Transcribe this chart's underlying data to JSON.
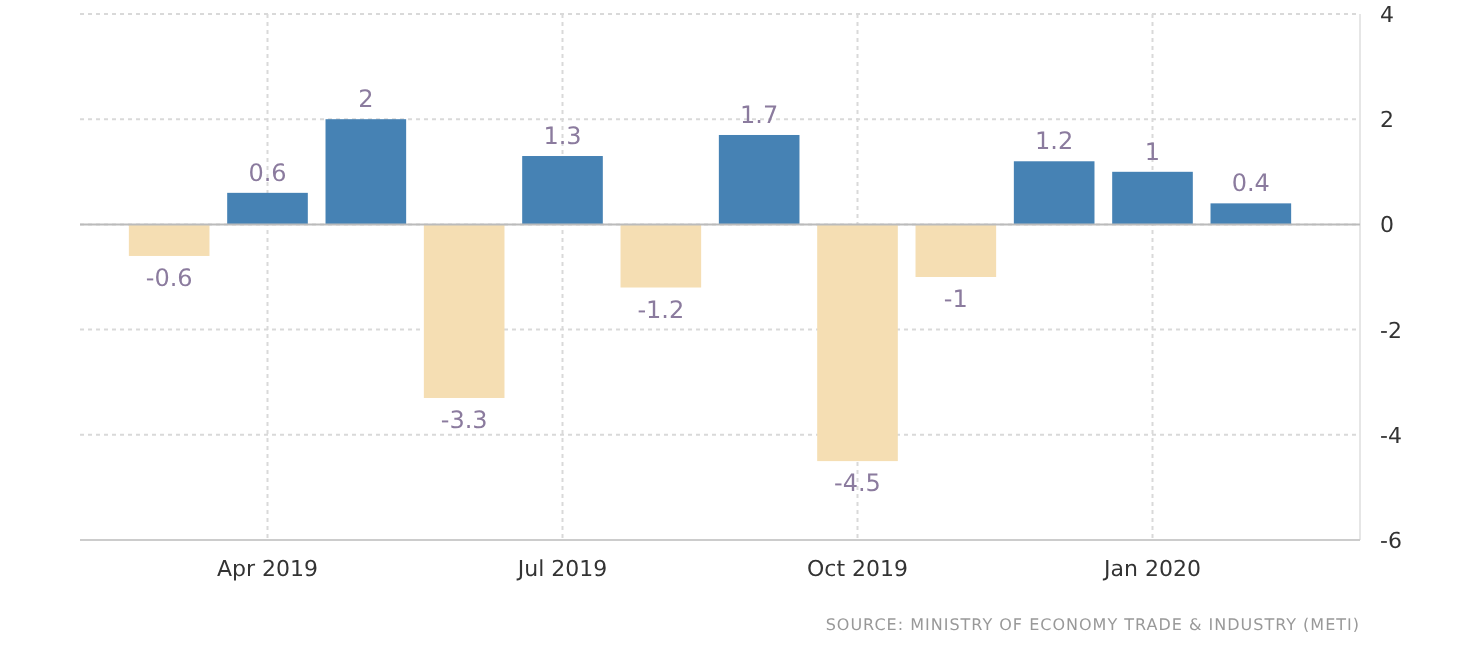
{
  "chart_data": {
    "type": "bar",
    "categories": [
      null,
      "Apr 2019",
      null,
      null,
      "Jul 2019",
      null,
      null,
      "Oct 2019",
      null,
      null,
      "Jan 2020",
      null
    ],
    "values": [
      -0.6,
      0.6,
      2,
      -3.3,
      1.3,
      -1.2,
      1.7,
      -4.5,
      -1,
      1.2,
      1,
      0.4
    ],
    "colors": [
      "#f5deb3",
      "#4682b4",
      "#4682b4",
      "#f5deb3",
      "#4682b4",
      "#f5deb3",
      "#4682b4",
      "#f5deb3",
      "#f5deb3",
      "#4682b4",
      "#4682b4",
      "#4682b4"
    ],
    "ylim": [
      -6,
      4
    ],
    "yticks": [
      -6,
      -4,
      -2,
      0,
      2,
      4
    ],
    "grid": true,
    "data_labels": true,
    "annotations": [
      "SOURCE: MINISTRY OF ECONOMY TRADE & INDUSTRY (METI)"
    ]
  }
}
